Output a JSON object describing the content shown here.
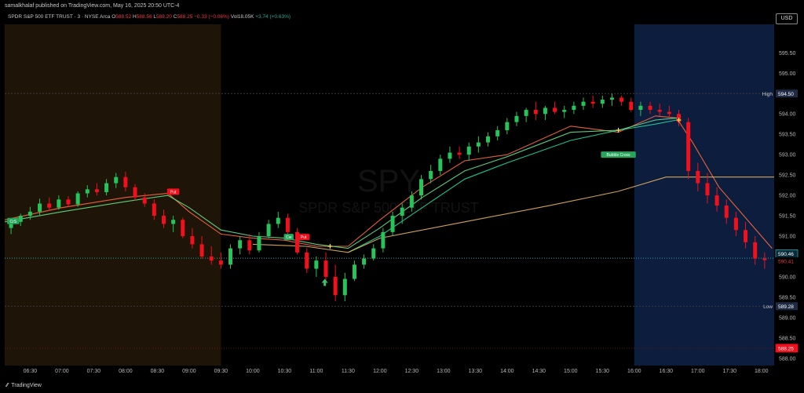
{
  "header": {
    "published": "samalkhalaf published on TradingView.com, May 16, 2025 20:50 UTC-4",
    "symbol": "SPDR S&P 500 ETF TRUST · 3 · NYSE Arca",
    "o_label": "O",
    "o_value": "588.52",
    "h_label": "H",
    "h_value": "588.56",
    "l_label": "L",
    "l_value": "588.20",
    "c_label": "C",
    "c_value": "588.25",
    "change": "−0.33 (−0.06%)",
    "vol_label": "Vol",
    "vol_value": "18.05K",
    "vol_change": "+3.74 (+0.63%)",
    "currency": "USD"
  },
  "footer": {
    "brand": "TradingView"
  },
  "watermark": {
    "ticker": "SPY",
    "name": "SPDR S&P 500 ETF TRUST"
  },
  "colors": {
    "up": "#26c45a",
    "down": "#f2101c",
    "premarket_bg": "#1e1508",
    "afterhours_bg": "#0c1d3d"
  },
  "chart_data": {
    "type": "candlestick",
    "ylim": [
      587.9,
      596.2
    ],
    "y_ticks": [
      588.0,
      588.5,
      589.0,
      589.5,
      590.0,
      590.5,
      591.0,
      591.5,
      592.0,
      592.5,
      593.0,
      593.5,
      594.0,
      594.5,
      595.0,
      595.5
    ],
    "y_tick_labels": [
      "588.00",
      "588.50",
      "589.00",
      "589.50",
      "590.00",
      "",
      "591.00",
      "591.50",
      "592.00",
      "592.50",
      "593.00",
      "593.50",
      "594.00",
      "",
      "595.00",
      "595.50"
    ],
    "x_ticks": [
      "06:30",
      "07:00",
      "07:30",
      "08:00",
      "08:30",
      "09:00",
      "09:30",
      "10:00",
      "10:30",
      "11:00",
      "11:30",
      "12:00",
      "12:30",
      "13:00",
      "13:30",
      "14:00",
      "14:30",
      "15:00",
      "15:30",
      "16:00",
      "16:30",
      "17:00",
      "17:30",
      "18:00"
    ],
    "x_tick_minutes": [
      390,
      420,
      450,
      480,
      510,
      540,
      570,
      600,
      630,
      660,
      690,
      720,
      750,
      780,
      810,
      840,
      870,
      900,
      930,
      960,
      990,
      1020,
      1050,
      1080
    ],
    "x_range_minutes": [
      366,
      1092
    ],
    "premarket_end": "09:30",
    "afterhours_start": "16:00",
    "key_lines": [
      {
        "label": "High",
        "value": 594.5
      },
      {
        "label": "Low",
        "value": 589.28
      },
      {
        "label": "",
        "value": 590.46
      }
    ],
    "price_tags": [
      {
        "value": "590.46",
        "style": "blue"
      },
      {
        "value": "590.41",
        "style": "red"
      },
      {
        "value": "588.25",
        "style": "red-fill"
      }
    ],
    "annotations": [
      {
        "text": "Bubble Cross",
        "time": 945,
        "price": 593.0
      },
      {
        "text": "CrS",
        "time": 374,
        "price": 591.37
      },
      {
        "text": "Put",
        "time": 525,
        "price": 592.09
      },
      {
        "text": "Cw",
        "time": 634,
        "price": 590.98
      },
      {
        "text": "Put",
        "time": 648,
        "price": 590.98
      }
    ],
    "series": [
      {
        "name": "ema_fast",
        "color": "#ff6a3d",
        "points": [
          [
            366,
            591.4
          ],
          [
            420,
            591.7
          ],
          [
            480,
            591.95
          ],
          [
            520,
            592.05
          ],
          [
            540,
            591.6
          ],
          [
            570,
            591.05
          ],
          [
            600,
            590.95
          ],
          [
            630,
            590.9
          ],
          [
            660,
            590.75
          ],
          [
            690,
            590.75
          ],
          [
            720,
            591.4
          ],
          [
            760,
            592.2
          ],
          [
            800,
            592.85
          ],
          [
            840,
            593.0
          ],
          [
            900,
            593.7
          ],
          [
            945,
            593.55
          ],
          [
            980,
            593.95
          ],
          [
            1000,
            593.9
          ],
          [
            1015,
            593.3
          ],
          [
            1040,
            592.2
          ],
          [
            1060,
            591.6
          ],
          [
            1090,
            590.7
          ]
        ]
      },
      {
        "name": "ema_mid",
        "color": "#66e08a",
        "points": [
          [
            366,
            591.35
          ],
          [
            420,
            591.6
          ],
          [
            480,
            591.85
          ],
          [
            520,
            592.0
          ],
          [
            540,
            591.7
          ],
          [
            570,
            591.15
          ],
          [
            600,
            591.0
          ],
          [
            630,
            590.95
          ],
          [
            660,
            590.8
          ],
          [
            690,
            590.7
          ],
          [
            720,
            591.2
          ],
          [
            760,
            591.95
          ],
          [
            800,
            592.6
          ],
          [
            840,
            592.95
          ],
          [
            900,
            593.55
          ],
          [
            945,
            593.6
          ],
          [
            980,
            593.85
          ],
          [
            1000,
            593.9
          ]
        ]
      },
      {
        "name": "ema_slow",
        "color": "#1fd6a0",
        "points": [
          [
            690,
            590.6
          ],
          [
            720,
            591.0
          ],
          [
            760,
            591.7
          ],
          [
            800,
            592.4
          ],
          [
            840,
            592.8
          ],
          [
            900,
            593.35
          ],
          [
            945,
            593.6
          ],
          [
            980,
            593.75
          ],
          [
            1000,
            593.85
          ]
        ]
      },
      {
        "name": "vwap",
        "color": "#e7b45c",
        "points": [
          [
            600,
            590.8
          ],
          [
            650,
            590.75
          ],
          [
            690,
            590.6
          ],
          [
            720,
            590.95
          ],
          [
            800,
            591.35
          ],
          [
            880,
            591.75
          ],
          [
            945,
            592.1
          ],
          [
            990,
            592.45
          ],
          [
            1040,
            592.45
          ],
          [
            1092,
            592.45
          ]
        ]
      }
    ],
    "candles": [
      [
        372,
        591.2,
        591.42,
        591.05,
        591.35
      ],
      [
        381,
        591.35,
        591.55,
        591.25,
        591.5
      ],
      [
        390,
        591.5,
        591.72,
        591.4,
        591.6
      ],
      [
        399,
        591.6,
        591.92,
        591.52,
        591.8
      ],
      [
        408,
        591.8,
        591.95,
        591.62,
        591.7
      ],
      [
        417,
        591.7,
        592.0,
        591.65,
        591.9
      ],
      [
        426,
        591.9,
        591.98,
        591.72,
        591.78
      ],
      [
        435,
        591.78,
        592.1,
        591.72,
        592.05
      ],
      [
        444,
        592.05,
        592.25,
        591.95,
        592.15
      ],
      [
        453,
        592.15,
        592.3,
        592.0,
        592.08
      ],
      [
        462,
        592.08,
        592.4,
        592.0,
        592.3
      ],
      [
        471,
        592.3,
        592.55,
        592.18,
        592.45
      ],
      [
        480,
        592.45,
        592.58,
        592.1,
        592.2
      ],
      [
        489,
        592.2,
        592.28,
        591.88,
        591.95
      ],
      [
        498,
        591.95,
        592.05,
        591.72,
        591.8
      ],
      [
        507,
        591.8,
        591.9,
        591.4,
        591.5
      ],
      [
        516,
        591.5,
        591.65,
        591.2,
        591.3
      ],
      [
        525,
        591.3,
        591.5,
        591.1,
        591.4
      ],
      [
        534,
        591.4,
        591.45,
        590.95,
        591.0
      ],
      [
        543,
        591.0,
        591.2,
        590.7,
        590.8
      ],
      [
        552,
        590.8,
        591.0,
        590.45,
        590.5
      ],
      [
        561,
        590.5,
        590.75,
        590.3,
        590.4
      ],
      [
        570,
        590.4,
        590.6,
        590.2,
        590.3
      ],
      [
        579,
        590.3,
        590.8,
        590.2,
        590.7
      ],
      [
        588,
        590.7,
        591.0,
        590.55,
        590.9
      ],
      [
        597,
        590.9,
        591.05,
        590.55,
        590.65
      ],
      [
        606,
        590.65,
        591.1,
        590.6,
        591.0
      ],
      [
        615,
        591.0,
        591.4,
        590.95,
        591.3
      ],
      [
        624,
        591.3,
        591.6,
        591.2,
        591.45
      ],
      [
        633,
        591.45,
        591.55,
        591.0,
        591.1
      ],
      [
        642,
        591.1,
        591.2,
        590.55,
        590.6
      ],
      [
        651,
        590.6,
        590.7,
        590.1,
        590.2
      ],
      [
        660,
        590.2,
        590.5,
        590.0,
        590.4
      ],
      [
        669,
        590.4,
        590.6,
        589.9,
        590.0
      ],
      [
        678,
        590.0,
        590.3,
        589.4,
        589.55
      ],
      [
        687,
        589.55,
        590.1,
        589.4,
        589.95
      ],
      [
        696,
        589.95,
        590.4,
        589.9,
        590.3
      ],
      [
        705,
        590.3,
        590.55,
        590.2,
        590.45
      ],
      [
        714,
        590.45,
        590.8,
        590.4,
        590.7
      ],
      [
        723,
        590.7,
        591.2,
        590.6,
        591.1
      ],
      [
        732,
        591.1,
        591.6,
        591.0,
        591.5
      ],
      [
        741,
        591.5,
        591.8,
        591.3,
        591.7
      ],
      [
        750,
        591.7,
        592.1,
        591.6,
        592.0
      ],
      [
        759,
        592.0,
        592.5,
        591.9,
        592.4
      ],
      [
        768,
        592.4,
        592.75,
        592.3,
        592.6
      ],
      [
        777,
        592.6,
        593.0,
        592.5,
        592.9
      ],
      [
        786,
        592.9,
        593.2,
        592.8,
        593.05
      ],
      [
        795,
        593.05,
        593.2,
        592.9,
        593.0
      ],
      [
        804,
        593.0,
        593.3,
        592.85,
        593.2
      ],
      [
        813,
        593.2,
        593.45,
        593.05,
        593.3
      ],
      [
        822,
        593.3,
        593.55,
        593.2,
        593.45
      ],
      [
        831,
        593.45,
        593.7,
        593.35,
        593.6
      ],
      [
        840,
        593.6,
        593.9,
        593.5,
        593.8
      ],
      [
        849,
        593.8,
        594.05,
        593.7,
        593.95
      ],
      [
        858,
        593.95,
        594.15,
        593.8,
        594.1
      ],
      [
        867,
        594.1,
        594.3,
        593.85,
        594.0
      ],
      [
        876,
        594.0,
        594.2,
        593.85,
        594.15
      ],
      [
        885,
        594.15,
        594.3,
        594.0,
        594.05
      ],
      [
        894,
        594.05,
        594.2,
        593.9,
        594.1
      ],
      [
        903,
        594.1,
        594.3,
        594.0,
        594.2
      ],
      [
        912,
        594.2,
        594.4,
        594.1,
        594.3
      ],
      [
        921,
        594.3,
        594.45,
        594.15,
        594.25
      ],
      [
        930,
        594.25,
        594.45,
        594.15,
        594.35
      ],
      [
        939,
        594.35,
        594.5,
        594.2,
        594.4
      ],
      [
        948,
        594.4,
        594.45,
        594.2,
        594.3
      ],
      [
        957,
        594.3,
        594.4,
        594.05,
        594.1
      ],
      [
        966,
        594.1,
        594.3,
        593.95,
        594.2
      ],
      [
        975,
        594.2,
        594.3,
        594.0,
        594.1
      ],
      [
        984,
        594.1,
        594.25,
        593.95,
        594.05
      ],
      [
        993,
        594.05,
        594.2,
        593.9,
        594.0
      ],
      [
        1002,
        594.0,
        594.1,
        593.7,
        593.8
      ],
      [
        1011,
        593.8,
        593.9,
        592.4,
        592.6
      ],
      [
        1020,
        592.6,
        592.8,
        592.1,
        592.3
      ],
      [
        1029,
        592.3,
        592.55,
        591.8,
        592.0
      ],
      [
        1038,
        592.0,
        592.2,
        591.6,
        591.75
      ],
      [
        1047,
        591.75,
        591.9,
        591.3,
        591.45
      ],
      [
        1056,
        591.45,
        591.6,
        591.0,
        591.15
      ],
      [
        1065,
        591.15,
        591.35,
        590.7,
        590.85
      ],
      [
        1074,
        590.85,
        591.0,
        590.3,
        590.45
      ],
      [
        1083,
        590.45,
        590.6,
        590.2,
        590.41
      ]
    ]
  }
}
